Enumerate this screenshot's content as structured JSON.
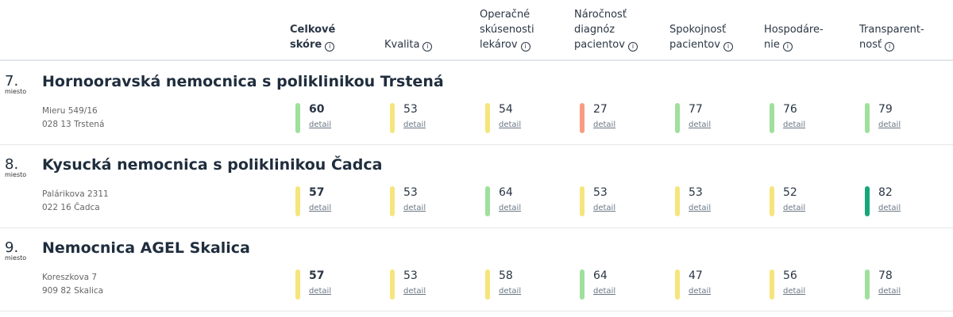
{
  "colors": {
    "green": "#9ee09c",
    "yellow": "#f5e57c",
    "red": "#f79c80",
    "dark_green": "#17a67a"
  },
  "columns": [
    {
      "lines": [
        "Celkové",
        "skóre"
      ]
    },
    {
      "lines": [
        "",
        "Kvalita"
      ]
    },
    {
      "lines": [
        "Operačné",
        "skúsenosti",
        "lekárov"
      ]
    },
    {
      "lines": [
        "Náročnosť",
        "diagnóz",
        "pacientov"
      ]
    },
    {
      "lines": [
        "",
        "Spokojnosť",
        "pacientov"
      ]
    },
    {
      "lines": [
        "",
        "Hospodáre-",
        "nie"
      ]
    },
    {
      "lines": [
        "",
        "Transparent-",
        "nosť"
      ]
    }
  ],
  "info_icon": "i",
  "detail_label": "detail",
  "rank_suffix": "miesto",
  "hospitals": [
    {
      "rank": "7.",
      "name": "Hornooravská nemocnica s poliklinikou Trstená",
      "address": [
        "Mieru 549/16",
        "028 13 Trstená"
      ],
      "scores": [
        {
          "v": "60",
          "c": "green"
        },
        {
          "v": "53",
          "c": "yellow"
        },
        {
          "v": "54",
          "c": "yellow"
        },
        {
          "v": "27",
          "c": "red"
        },
        {
          "v": "77",
          "c": "green"
        },
        {
          "v": "76",
          "c": "green"
        },
        {
          "v": "79",
          "c": "green"
        }
      ]
    },
    {
      "rank": "8.",
      "name": "Kysucká nemocnica s poliklinikou Čadca",
      "address": [
        "Palárikova 2311",
        "022 16 Čadca"
      ],
      "scores": [
        {
          "v": "57",
          "c": "yellow"
        },
        {
          "v": "53",
          "c": "yellow"
        },
        {
          "v": "64",
          "c": "green"
        },
        {
          "v": "53",
          "c": "yellow"
        },
        {
          "v": "53",
          "c": "yellow"
        },
        {
          "v": "52",
          "c": "yellow"
        },
        {
          "v": "82",
          "c": "dark_green"
        }
      ]
    },
    {
      "rank": "9.",
      "name": "Nemocnica AGEL Skalica",
      "address": [
        "Koreszkova 7",
        "909 82 Skalica"
      ],
      "scores": [
        {
          "v": "57",
          "c": "yellow"
        },
        {
          "v": "53",
          "c": "yellow"
        },
        {
          "v": "58",
          "c": "yellow"
        },
        {
          "v": "64",
          "c": "green"
        },
        {
          "v": "47",
          "c": "yellow"
        },
        {
          "v": "56",
          "c": "yellow"
        },
        {
          "v": "78",
          "c": "green"
        }
      ]
    }
  ]
}
